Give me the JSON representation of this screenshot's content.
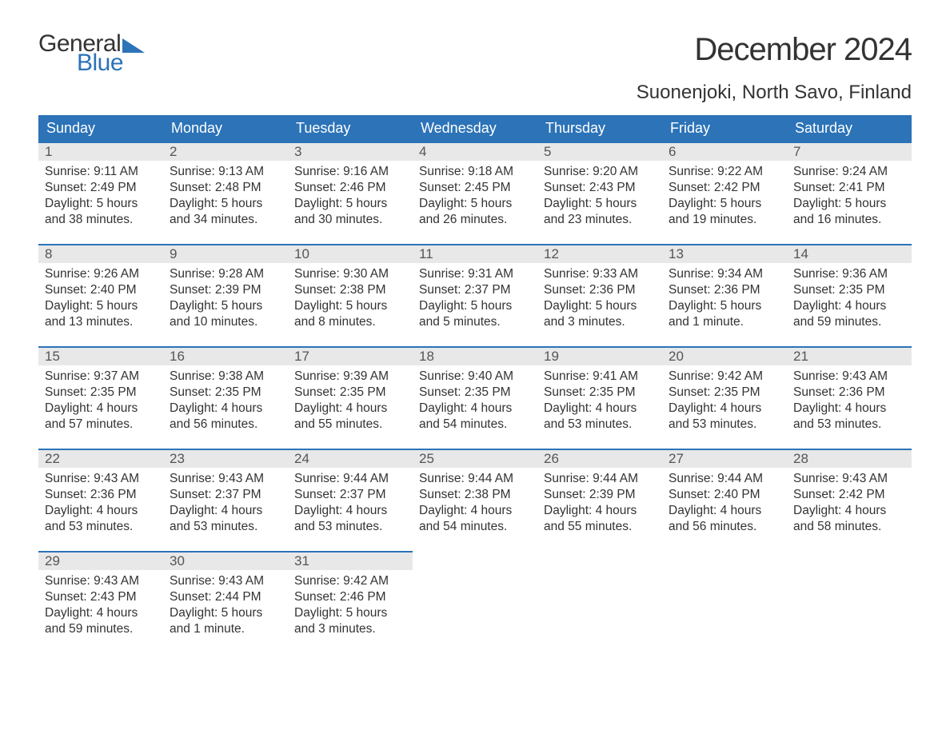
{
  "logo": {
    "text_general": "General",
    "text_blue": "Blue",
    "tri_color": "#2c73b8"
  },
  "title": "December 2024",
  "location": "Suonenjoki, North Savo, Finland",
  "colors": {
    "header_bg": "#2c73b8",
    "header_text": "#ffffff",
    "daynum_bg": "#e8e8e8",
    "daynum_text": "#555555",
    "body_text": "#333333",
    "page_bg": "#ffffff"
  },
  "weekdays": [
    "Sunday",
    "Monday",
    "Tuesday",
    "Wednesday",
    "Thursday",
    "Friday",
    "Saturday"
  ],
  "weeks": [
    [
      {
        "n": "1",
        "sunrise": "Sunrise: 9:11 AM",
        "sunset": "Sunset: 2:49 PM",
        "daylight": "Daylight: 5 hours and 38 minutes."
      },
      {
        "n": "2",
        "sunrise": "Sunrise: 9:13 AM",
        "sunset": "Sunset: 2:48 PM",
        "daylight": "Daylight: 5 hours and 34 minutes."
      },
      {
        "n": "3",
        "sunrise": "Sunrise: 9:16 AM",
        "sunset": "Sunset: 2:46 PM",
        "daylight": "Daylight: 5 hours and 30 minutes."
      },
      {
        "n": "4",
        "sunrise": "Sunrise: 9:18 AM",
        "sunset": "Sunset: 2:45 PM",
        "daylight": "Daylight: 5 hours and 26 minutes."
      },
      {
        "n": "5",
        "sunrise": "Sunrise: 9:20 AM",
        "sunset": "Sunset: 2:43 PM",
        "daylight": "Daylight: 5 hours and 23 minutes."
      },
      {
        "n": "6",
        "sunrise": "Sunrise: 9:22 AM",
        "sunset": "Sunset: 2:42 PM",
        "daylight": "Daylight: 5 hours and 19 minutes."
      },
      {
        "n": "7",
        "sunrise": "Sunrise: 9:24 AM",
        "sunset": "Sunset: 2:41 PM",
        "daylight": "Daylight: 5 hours and 16 minutes."
      }
    ],
    [
      {
        "n": "8",
        "sunrise": "Sunrise: 9:26 AM",
        "sunset": "Sunset: 2:40 PM",
        "daylight": "Daylight: 5 hours and 13 minutes."
      },
      {
        "n": "9",
        "sunrise": "Sunrise: 9:28 AM",
        "sunset": "Sunset: 2:39 PM",
        "daylight": "Daylight: 5 hours and 10 minutes."
      },
      {
        "n": "10",
        "sunrise": "Sunrise: 9:30 AM",
        "sunset": "Sunset: 2:38 PM",
        "daylight": "Daylight: 5 hours and 8 minutes."
      },
      {
        "n": "11",
        "sunrise": "Sunrise: 9:31 AM",
        "sunset": "Sunset: 2:37 PM",
        "daylight": "Daylight: 5 hours and 5 minutes."
      },
      {
        "n": "12",
        "sunrise": "Sunrise: 9:33 AM",
        "sunset": "Sunset: 2:36 PM",
        "daylight": "Daylight: 5 hours and 3 minutes."
      },
      {
        "n": "13",
        "sunrise": "Sunrise: 9:34 AM",
        "sunset": "Sunset: 2:36 PM",
        "daylight": "Daylight: 5 hours and 1 minute."
      },
      {
        "n": "14",
        "sunrise": "Sunrise: 9:36 AM",
        "sunset": "Sunset: 2:35 PM",
        "daylight": "Daylight: 4 hours and 59 minutes."
      }
    ],
    [
      {
        "n": "15",
        "sunrise": "Sunrise: 9:37 AM",
        "sunset": "Sunset: 2:35 PM",
        "daylight": "Daylight: 4 hours and 57 minutes."
      },
      {
        "n": "16",
        "sunrise": "Sunrise: 9:38 AM",
        "sunset": "Sunset: 2:35 PM",
        "daylight": "Daylight: 4 hours and 56 minutes."
      },
      {
        "n": "17",
        "sunrise": "Sunrise: 9:39 AM",
        "sunset": "Sunset: 2:35 PM",
        "daylight": "Daylight: 4 hours and 55 minutes."
      },
      {
        "n": "18",
        "sunrise": "Sunrise: 9:40 AM",
        "sunset": "Sunset: 2:35 PM",
        "daylight": "Daylight: 4 hours and 54 minutes."
      },
      {
        "n": "19",
        "sunrise": "Sunrise: 9:41 AM",
        "sunset": "Sunset: 2:35 PM",
        "daylight": "Daylight: 4 hours and 53 minutes."
      },
      {
        "n": "20",
        "sunrise": "Sunrise: 9:42 AM",
        "sunset": "Sunset: 2:35 PM",
        "daylight": "Daylight: 4 hours and 53 minutes."
      },
      {
        "n": "21",
        "sunrise": "Sunrise: 9:43 AM",
        "sunset": "Sunset: 2:36 PM",
        "daylight": "Daylight: 4 hours and 53 minutes."
      }
    ],
    [
      {
        "n": "22",
        "sunrise": "Sunrise: 9:43 AM",
        "sunset": "Sunset: 2:36 PM",
        "daylight": "Daylight: 4 hours and 53 minutes."
      },
      {
        "n": "23",
        "sunrise": "Sunrise: 9:43 AM",
        "sunset": "Sunset: 2:37 PM",
        "daylight": "Daylight: 4 hours and 53 minutes."
      },
      {
        "n": "24",
        "sunrise": "Sunrise: 9:44 AM",
        "sunset": "Sunset: 2:37 PM",
        "daylight": "Daylight: 4 hours and 53 minutes."
      },
      {
        "n": "25",
        "sunrise": "Sunrise: 9:44 AM",
        "sunset": "Sunset: 2:38 PM",
        "daylight": "Daylight: 4 hours and 54 minutes."
      },
      {
        "n": "26",
        "sunrise": "Sunrise: 9:44 AM",
        "sunset": "Sunset: 2:39 PM",
        "daylight": "Daylight: 4 hours and 55 minutes."
      },
      {
        "n": "27",
        "sunrise": "Sunrise: 9:44 AM",
        "sunset": "Sunset: 2:40 PM",
        "daylight": "Daylight: 4 hours and 56 minutes."
      },
      {
        "n": "28",
        "sunrise": "Sunrise: 9:43 AM",
        "sunset": "Sunset: 2:42 PM",
        "daylight": "Daylight: 4 hours and 58 minutes."
      }
    ],
    [
      {
        "n": "29",
        "sunrise": "Sunrise: 9:43 AM",
        "sunset": "Sunset: 2:43 PM",
        "daylight": "Daylight: 4 hours and 59 minutes."
      },
      {
        "n": "30",
        "sunrise": "Sunrise: 9:43 AM",
        "sunset": "Sunset: 2:44 PM",
        "daylight": "Daylight: 5 hours and 1 minute."
      },
      {
        "n": "31",
        "sunrise": "Sunrise: 9:42 AM",
        "sunset": "Sunset: 2:46 PM",
        "daylight": "Daylight: 5 hours and 3 minutes."
      },
      null,
      null,
      null,
      null
    ]
  ]
}
